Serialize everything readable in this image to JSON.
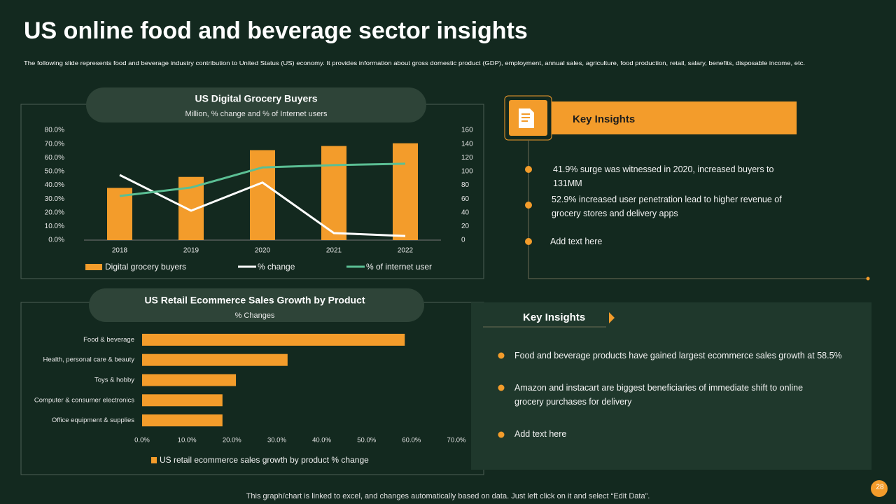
{
  "header": {
    "title": "US online food and beverage sector insights",
    "subtitle": "The following slide represents food and beverage industry contribution to United Status (US) economy. It provides information about gross domestic product (GDP), employment, annual sales, agriculture, food production, retail, salary, benefits, disposable income, etc."
  },
  "chart_data": [
    {
      "type": "combo",
      "title": "US Digital Grocery Buyers",
      "subtitle": "Million,  % change  and % of Internet  users",
      "categories": [
        "2018",
        "2019",
        "2020",
        "2021",
        "2022"
      ],
      "series": [
        {
          "name": "Digital grocery buyers",
          "type": "bar",
          "axis": "y2",
          "color": "#f39c2b",
          "values": [
            76,
            92,
            131,
            137,
            141
          ]
        },
        {
          "name": "% change",
          "type": "line",
          "color": "#ffffff",
          "values": [
            47.4,
            21.4,
            41.9,
            5.1,
            3
          ]
        },
        {
          "name": "% of internet user",
          "type": "line",
          "color": "#5bbf94",
          "values": [
            32.1,
            38.3,
            52.9,
            54.6,
            55.6
          ]
        }
      ],
      "ylim": [
        0,
        80
      ],
      "yticks": [
        {
          "value": 0,
          "label": "0.0%"
        },
        {
          "value": 10,
          "label": "10.0%"
        },
        {
          "value": 20,
          "label": "20.0%"
        },
        {
          "value": 30,
          "label": "30.0%"
        },
        {
          "value": 40,
          "label": "40.0%"
        },
        {
          "value": 50,
          "label": "50.0%"
        },
        {
          "value": 60,
          "label": "60.0%"
        },
        {
          "value": 70,
          "label": "70.0%"
        },
        {
          "value": 80,
          "label": "80.0%"
        }
      ],
      "y2lim": [
        0,
        160
      ],
      "y2ticks": [
        0,
        20,
        40,
        60,
        80,
        100,
        120,
        140,
        160
      ]
    },
    {
      "type": "barh",
      "title": "US Retail Ecommerce Sales Growth by Product",
      "subtitle": "% Changes",
      "categories": [
        "Food & beverage",
        "Health, personal care & beauty",
        "Toys & hobby",
        "Computer & consumer electronics",
        "Office equipment & supplies"
      ],
      "series": [
        {
          "name": "US retail ecommerce sales growth by product % change",
          "color": "#f39c2b",
          "values": [
            58.5,
            32.4,
            20.9,
            17.9,
            17.9
          ]
        }
      ],
      "xlim": [
        0,
        70
      ],
      "xticks": [
        {
          "value": 0,
          "label": "0.0%"
        },
        {
          "value": 10,
          "label": "10.0%"
        },
        {
          "value": 20,
          "label": "20.0%"
        },
        {
          "value": 30,
          "label": "30.0%"
        },
        {
          "value": 40,
          "label": "40.0%"
        },
        {
          "value": 50,
          "label": "50.0%"
        },
        {
          "value": 60,
          "label": "60.0%"
        },
        {
          "value": 70,
          "label": "70.0%"
        }
      ]
    }
  ],
  "insights_top": {
    "heading": "Key Insights",
    "items": [
      "41.9% surge was witnessed in 2020, increased buyers to 131MM",
      "52.9% increased user penetration lead to higher revenue of grocery stores and delivery apps",
      "Add text here"
    ]
  },
  "insights_bottom": {
    "heading": "Key Insights",
    "items": [
      "Food and beverage products have gained largest ecommerce sales growth at 58.5%",
      "Amazon and instacart are biggest beneficiaries of immediate shift to online grocery purchases for delivery",
      "Add text here"
    ]
  },
  "footer": "This graph/chart is linked to excel, and changes automatically based on data. Just left click on it and select “Edit Data”.",
  "page_number": "28"
}
